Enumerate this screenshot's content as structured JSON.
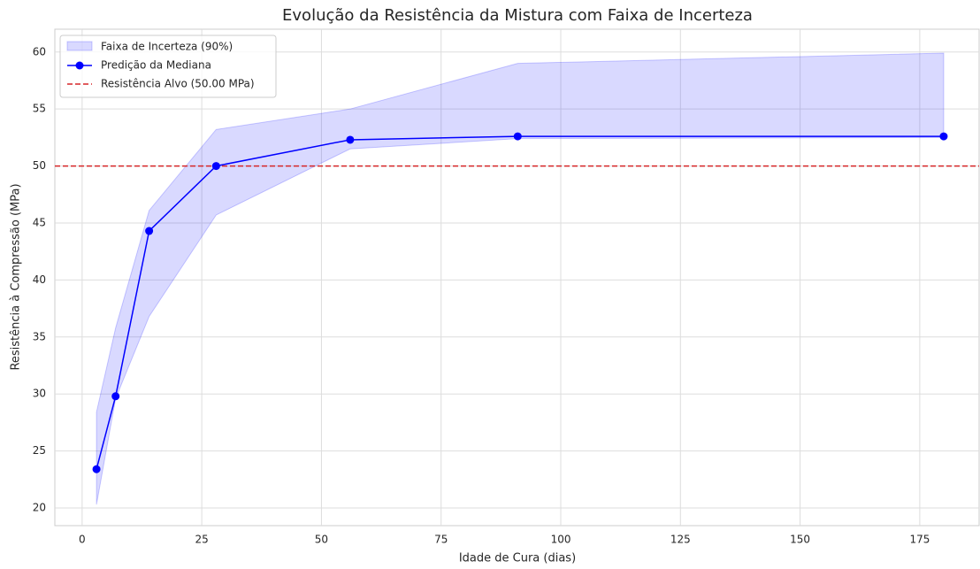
{
  "chart_data": {
    "type": "line",
    "title": "Evolução da Resistência da Mistura com Faixa de Incerteza",
    "xlabel": "Idade de Cura (dias)",
    "ylabel": "Resistência à Compressão (MPa)",
    "x": [
      3,
      7,
      14,
      28,
      56,
      91,
      180
    ],
    "series": [
      {
        "name": "Predição da Mediana",
        "color": "#0000ff",
        "values": [
          23.4,
          29.8,
          44.3,
          50.0,
          52.3,
          52.6,
          52.6
        ]
      }
    ],
    "band": {
      "name": "Faixa de Incerteza (90%)",
      "color": "#0000ff",
      "lower": [
        20.3,
        29.6,
        36.8,
        45.7,
        51.5,
        52.4,
        52.5
      ],
      "upper": [
        28.4,
        35.8,
        46.1,
        53.2,
        55.0,
        59.0,
        59.9
      ]
    },
    "hline": {
      "name": "Resistência Alvo (50.00 MPa)",
      "value": 50,
      "color": "#d62728"
    },
    "xlim": [
      -5.7,
      187.4
    ],
    "xticks": [
      0,
      25,
      50,
      75,
      100,
      125,
      150,
      175
    ],
    "ylim": [
      18.45,
      62.0
    ],
    "yticks": [
      20,
      25,
      30,
      35,
      40,
      45,
      50,
      55,
      60
    ],
    "grid": true,
    "legend": "upper left"
  }
}
